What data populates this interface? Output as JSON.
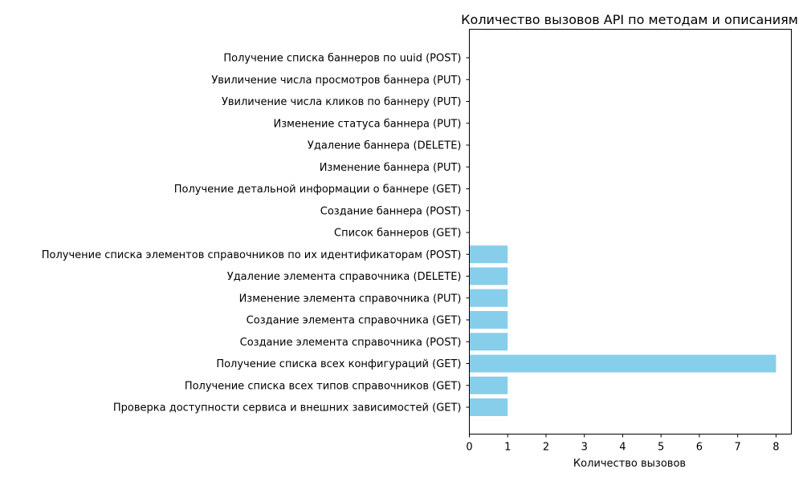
{
  "chart_data": {
    "type": "bar",
    "orientation": "horizontal",
    "title": "Количество вызовов API по методам и описаниям",
    "xlabel": "Количество вызовов",
    "ylabel": "",
    "xlim": [
      0,
      8.4
    ],
    "x_ticks": [
      0,
      1,
      2,
      3,
      4,
      5,
      6,
      7,
      8
    ],
    "grid": false,
    "bar_color": "#87ceeb",
    "categories": [
      "Получение списка баннеров по uuid (POST)",
      "Увиличение числа просмотров баннера (PUT)",
      "Увиличение числа кликов по баннеру (PUT)",
      "Изменение статуса баннера (PUT)",
      "Удаление баннера (DELETE)",
      "Изменение баннера (PUT)",
      "Получение детальной информации о баннере (GET)",
      "Создание баннера (POST)",
      "Список баннеров (GET)",
      "Получение списка элементов справочников по их идентификаторам (POST)",
      "Удаление элемента справочника (DELETE)",
      "Изменение элемента справочника (PUT)",
      "Создание элемента справочника (GET)",
      "Создание элемента справочника (POST)",
      "Получение списка всех конфигураций (GET)",
      "Получение списка всех типов справочников (GET)",
      "Проверка доступности сервиса и внешних зависимостей (GET)"
    ],
    "values": [
      0,
      0,
      0,
      0,
      0,
      0,
      0,
      0,
      0,
      1,
      1,
      1,
      1,
      1,
      8,
      1,
      1
    ]
  }
}
